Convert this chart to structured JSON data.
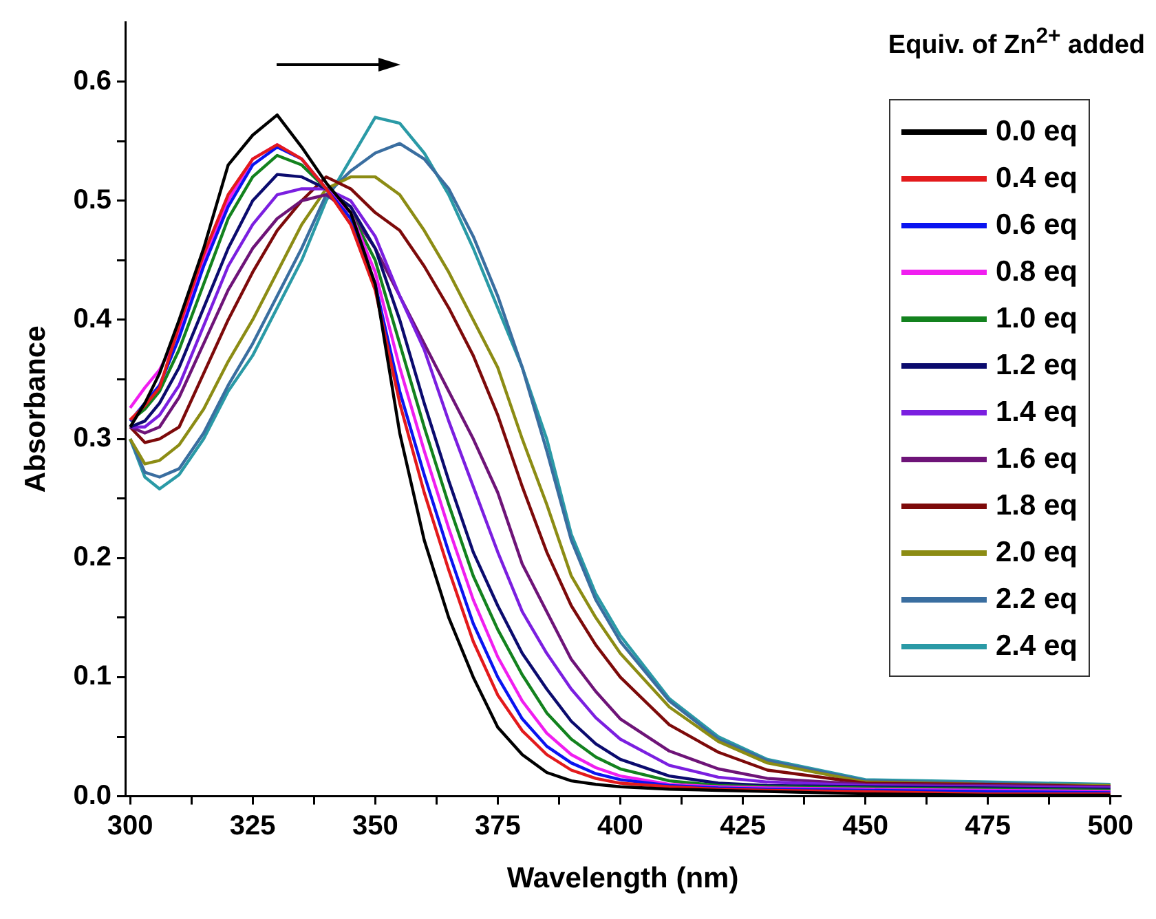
{
  "chart_data": {
    "type": "line",
    "xlabel": "Wavelength (nm)",
    "ylabel": "Absorbance",
    "legend_title": "Equiv. of Zn$^{2+}$ added",
    "legend": "top right",
    "xlim": [
      299,
      502
    ],
    "ylim": [
      0,
      0.65
    ],
    "xticks": [
      300,
      {
        "value": 312.5,
        "label": null
      },
      325,
      {
        "value": 337.5,
        "label": null
      },
      350,
      {
        "value": 362.5,
        "label": null
      },
      375,
      {
        "value": 387.5,
        "label": null
      },
      400,
      {
        "value": 412.5,
        "label": null
      },
      425,
      {
        "value": 437.5,
        "label": null
      },
      450,
      {
        "value": 462.5,
        "label": null
      },
      475,
      {
        "value": 487.5,
        "label": null
      },
      500
    ],
    "yticks": [
      {
        "value": 0,
        "label": "0.0"
      },
      {
        "value": 0.05,
        "label": null
      },
      0.1,
      {
        "value": 0.15,
        "label": null
      },
      0.2,
      {
        "value": 0.25,
        "label": null
      },
      0.3,
      {
        "value": 0.35,
        "label": null
      },
      0.4,
      {
        "value": 0.45,
        "label": null
      },
      0.5,
      {
        "value": 0.55,
        "label": null
      },
      0.6
    ],
    "x": [
      300,
      303,
      306,
      310,
      315,
      320,
      325,
      330,
      335,
      340,
      345,
      350,
      355,
      360,
      365,
      370,
      375,
      380,
      385,
      390,
      395,
      400,
      410,
      420,
      430,
      450,
      475,
      500
    ],
    "series": [
      {
        "name": "0.0 eq",
        "color": "#000000",
        "values": [
          0.31,
          0.33,
          0.355,
          0.4,
          0.46,
          0.53,
          0.555,
          0.572,
          0.545,
          0.515,
          0.49,
          0.43,
          0.305,
          0.215,
          0.15,
          0.1,
          0.058,
          0.035,
          0.02,
          0.013,
          0.01,
          0.008,
          0.006,
          0.005,
          0.004,
          0.002,
          0.001,
          0.001
        ]
      },
      {
        "name": "0.4 eq",
        "color": "#e31a1c",
        "values": [
          0.316,
          0.328,
          0.343,
          0.395,
          0.455,
          0.505,
          0.535,
          0.547,
          0.535,
          0.51,
          0.48,
          0.425,
          0.33,
          0.255,
          0.19,
          0.13,
          0.085,
          0.055,
          0.035,
          0.022,
          0.015,
          0.011,
          0.008,
          0.006,
          0.005,
          0.004,
          0.002,
          0.002
        ]
      },
      {
        "name": "0.6 eq",
        "color": "#0a14f0",
        "values": [
          0.315,
          0.33,
          0.345,
          0.385,
          0.445,
          0.495,
          0.53,
          0.545,
          0.535,
          0.51,
          0.485,
          0.43,
          0.34,
          0.27,
          0.205,
          0.145,
          0.1,
          0.065,
          0.042,
          0.028,
          0.019,
          0.014,
          0.009,
          0.007,
          0.006,
          0.005,
          0.004,
          0.003
        ]
      },
      {
        "name": "0.8 eq",
        "color": "#f01ef0",
        "values": [
          0.326,
          0.343,
          0.358,
          0.39,
          0.45,
          0.5,
          0.535,
          0.547,
          0.535,
          0.51,
          0.49,
          0.44,
          0.36,
          0.29,
          0.225,
          0.165,
          0.117,
          0.08,
          0.053,
          0.035,
          0.024,
          0.017,
          0.01,
          0.008,
          0.007,
          0.006,
          0.005,
          0.004
        ]
      },
      {
        "name": "1.0 eq",
        "color": "#13821e",
        "values": [
          0.315,
          0.325,
          0.34,
          0.375,
          0.43,
          0.485,
          0.52,
          0.538,
          0.53,
          0.51,
          0.49,
          0.45,
          0.38,
          0.31,
          0.245,
          0.185,
          0.14,
          0.102,
          0.07,
          0.048,
          0.033,
          0.023,
          0.013,
          0.009,
          0.008,
          0.007,
          0.006,
          0.005
        ]
      },
      {
        "name": "1.2 eq",
        "color": "#0b0b6e",
        "values": [
          0.31,
          0.315,
          0.33,
          0.36,
          0.41,
          0.46,
          0.5,
          0.522,
          0.52,
          0.51,
          0.495,
          0.46,
          0.4,
          0.33,
          0.265,
          0.205,
          0.16,
          0.12,
          0.09,
          0.063,
          0.044,
          0.031,
          0.017,
          0.011,
          0.009,
          0.008,
          0.007,
          0.006
        ]
      },
      {
        "name": "1.4 eq",
        "color": "#7b1fe0",
        "values": [
          0.31,
          0.31,
          0.32,
          0.345,
          0.395,
          0.445,
          0.48,
          0.505,
          0.51,
          0.51,
          0.5,
          0.47,
          0.42,
          0.375,
          0.315,
          0.26,
          0.205,
          0.155,
          0.12,
          0.09,
          0.066,
          0.048,
          0.026,
          0.016,
          0.012,
          0.009,
          0.008,
          0.007
        ]
      },
      {
        "name": "1.6 eq",
        "color": "#6e1478",
        "values": [
          0.31,
          0.305,
          0.31,
          0.335,
          0.38,
          0.425,
          0.46,
          0.485,
          0.5,
          0.505,
          0.49,
          0.46,
          0.42,
          0.38,
          0.34,
          0.3,
          0.255,
          0.195,
          0.155,
          0.115,
          0.088,
          0.065,
          0.038,
          0.023,
          0.015,
          0.01,
          0.009,
          0.008
        ]
      },
      {
        "name": "1.8 eq",
        "color": "#7d0a0a",
        "values": [
          0.31,
          0.297,
          0.3,
          0.31,
          0.355,
          0.4,
          0.44,
          0.475,
          0.5,
          0.52,
          0.51,
          0.49,
          0.475,
          0.445,
          0.41,
          0.37,
          0.32,
          0.26,
          0.205,
          0.16,
          0.127,
          0.1,
          0.06,
          0.037,
          0.022,
          0.011,
          0.01,
          0.008
        ]
      },
      {
        "name": "2.0 eq",
        "color": "#8c8c14",
        "values": [
          0.3,
          0.279,
          0.282,
          0.295,
          0.325,
          0.365,
          0.4,
          0.44,
          0.48,
          0.51,
          0.52,
          0.52,
          0.505,
          0.475,
          0.44,
          0.4,
          0.36,
          0.3,
          0.245,
          0.185,
          0.15,
          0.12,
          0.075,
          0.046,
          0.028,
          0.012,
          0.01,
          0.009
        ]
      },
      {
        "name": "2.2 eq",
        "color": "#3a6ea0",
        "values": [
          0.3,
          0.272,
          0.268,
          0.275,
          0.305,
          0.345,
          0.38,
          0.42,
          0.46,
          0.505,
          0.525,
          0.54,
          0.548,
          0.535,
          0.51,
          0.47,
          0.42,
          0.36,
          0.29,
          0.215,
          0.165,
          0.13,
          0.08,
          0.048,
          0.03,
          0.013,
          0.011,
          0.009
        ]
      },
      {
        "name": "2.4 eq",
        "color": "#2a9aa6",
        "values": [
          0.3,
          0.268,
          0.258,
          0.27,
          0.3,
          0.34,
          0.37,
          0.41,
          0.45,
          0.5,
          0.535,
          0.57,
          0.565,
          0.54,
          0.505,
          0.46,
          0.41,
          0.36,
          0.3,
          0.22,
          0.17,
          0.135,
          0.082,
          0.05,
          0.031,
          0.014,
          0.012,
          0.01
        ]
      }
    ]
  }
}
